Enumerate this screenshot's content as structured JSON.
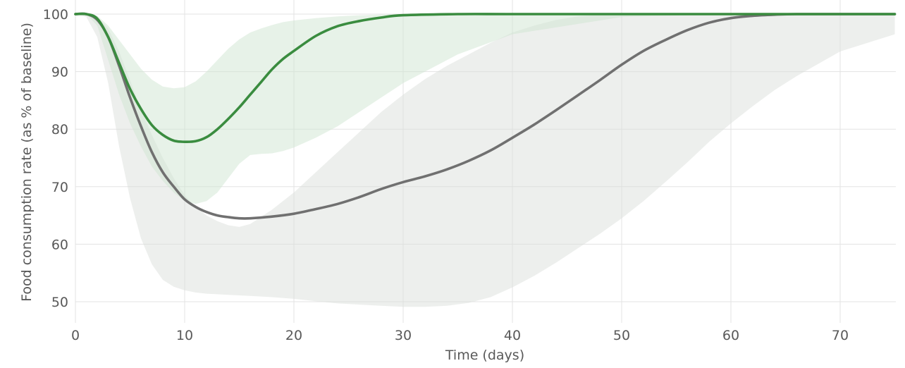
{
  "chart_data": {
    "type": "line",
    "title": "",
    "xlabel": "Time (days)",
    "ylabel": "Food consumption rate (as % of baseline)",
    "xlim": [
      0,
      75
    ],
    "ylim": [
      46,
      100
    ],
    "xticks": [
      0,
      10,
      20,
      30,
      40,
      50,
      60,
      70
    ],
    "yticks": [
      50,
      60,
      70,
      80,
      90,
      100
    ],
    "grid": true,
    "legend": "none",
    "colors": {
      "green_line": "#3a8c3f",
      "green_band": "#cfe6d1",
      "grey_line": "#707070",
      "grey_band": "#d7dcd8",
      "grid": "#e3e3e3",
      "text": "#595959"
    },
    "series": [
      {
        "color": "green",
        "x": [
          0,
          1,
          2,
          3,
          4,
          5,
          6,
          7,
          8,
          9,
          10,
          11,
          12,
          13,
          14,
          15,
          16,
          17,
          18,
          19,
          20,
          22,
          24,
          26,
          28,
          30,
          35,
          40,
          50,
          60,
          75
        ],
        "y": [
          100,
          100,
          99.2,
          96,
          91.5,
          87,
          83.5,
          80.7,
          79,
          78,
          77.8,
          77.9,
          78.6,
          80,
          81.8,
          83.8,
          86,
          88.2,
          90.4,
          92.2,
          93.6,
          96.2,
          97.9,
          98.8,
          99.4,
          99.8,
          100,
          100,
          100,
          100,
          100
        ],
        "band_upper": [
          100,
          100,
          99.7,
          98,
          95.5,
          93,
          90.5,
          88.6,
          87.4,
          87.1,
          87.3,
          88.3,
          90,
          92,
          94,
          95.6,
          96.8,
          97.5,
          98.1,
          98.6,
          98.9,
          99.3,
          99.6,
          99.8,
          99.9,
          100,
          100,
          100,
          100,
          100,
          100
        ],
        "band_lower": [
          100,
          100,
          98,
          92,
          86,
          81,
          77,
          73.5,
          71,
          69,
          67.5,
          67,
          67.5,
          69,
          71.5,
          74,
          75.5,
          75.7,
          75.8,
          76.2,
          76.8,
          78.5,
          80.5,
          83,
          85.5,
          88,
          93,
          96.5,
          99.5,
          100,
          100
        ]
      },
      {
        "color": "grey",
        "x": [
          0,
          1,
          2,
          3,
          4,
          5,
          6,
          7,
          8,
          9,
          10,
          11,
          12,
          13,
          14,
          15,
          16,
          18,
          20,
          22,
          24,
          26,
          28,
          30,
          32,
          34,
          36,
          38,
          40,
          42,
          44,
          46,
          48,
          50,
          52,
          54,
          56,
          58,
          60,
          62,
          64,
          66,
          70,
          75
        ],
        "y": [
          100,
          100,
          99,
          96,
          91,
          85.5,
          80.5,
          76,
          72.5,
          70,
          67.8,
          66.5,
          65.6,
          65,
          64.7,
          64.5,
          64.5,
          64.8,
          65.3,
          66.1,
          67,
          68.2,
          69.6,
          70.8,
          71.8,
          73,
          74.5,
          76.3,
          78.5,
          80.8,
          83.3,
          85.9,
          88.5,
          91.2,
          93.6,
          95.5,
          97.2,
          98.5,
          99.3,
          99.7,
          99.9,
          100,
          100,
          100
        ],
        "band_upper": [
          100,
          100,
          99.5,
          97.5,
          93.5,
          88.5,
          83.5,
          79,
          75,
          71.5,
          68.5,
          66.5,
          65,
          64,
          63.3,
          63,
          63.5,
          66,
          69,
          72.5,
          76,
          79.5,
          83,
          86,
          88.7,
          91,
          93,
          95,
          96.8,
          98,
          99,
          99.6,
          99.9,
          100,
          100,
          100,
          100,
          100,
          100,
          100,
          100,
          100,
          100,
          100
        ],
        "band_lower": [
          100,
          99.5,
          96,
          88,
          77,
          68,
          61,
          56.5,
          53.8,
          52.6,
          52,
          51.6,
          51.4,
          51.3,
          51.2,
          51.1,
          51,
          50.8,
          50.5,
          50.1,
          49.7,
          49.5,
          49.3,
          49.1,
          49.1,
          49.3,
          49.8,
          50.8,
          52.5,
          54.5,
          56.8,
          59.3,
          61.8,
          64.5,
          67.5,
          70.8,
          74.2,
          77.8,
          81,
          84,
          86.8,
          89.2,
          93.5,
          96.5
        ]
      }
    ]
  }
}
